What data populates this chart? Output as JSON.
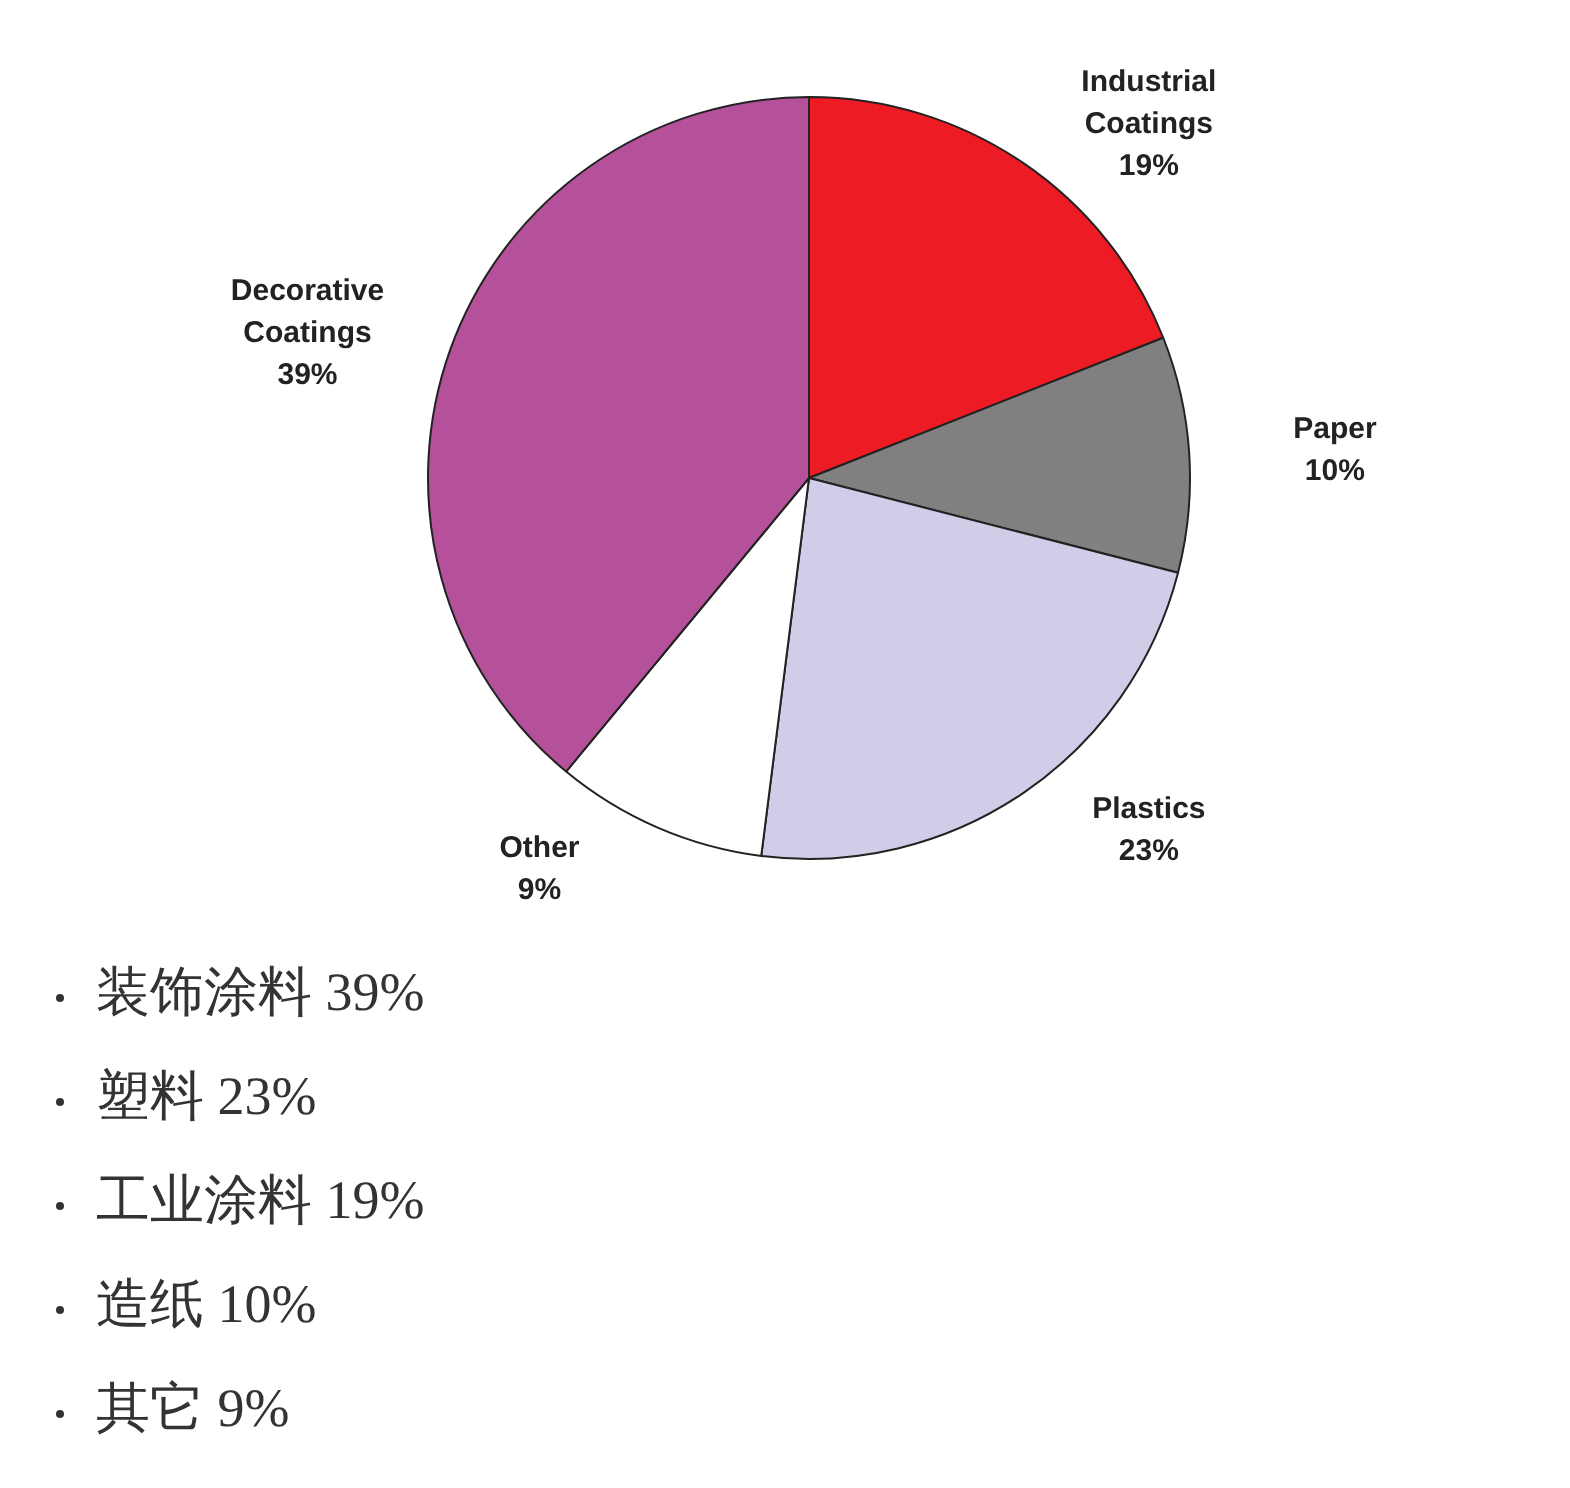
{
  "chart_data": {
    "type": "pie",
    "categories": [
      "Industrial Coatings",
      "Paper",
      "Plastics",
      "Other",
      "Decorative Coatings"
    ],
    "values": [
      19,
      10,
      23,
      9,
      39
    ],
    "colors": [
      "#ed1c24",
      "#808080",
      "#d0cde8",
      "#ffffff",
      "#b5519b"
    ],
    "value_labels": [
      "19%",
      "10%",
      "23%",
      "9%",
      "39%"
    ],
    "legend": false,
    "annotations": [
      "装饰涂料 39%",
      "塑料 23%",
      "工业涂料 19%",
      "造纸 10%",
      "其它 9%"
    ]
  }
}
